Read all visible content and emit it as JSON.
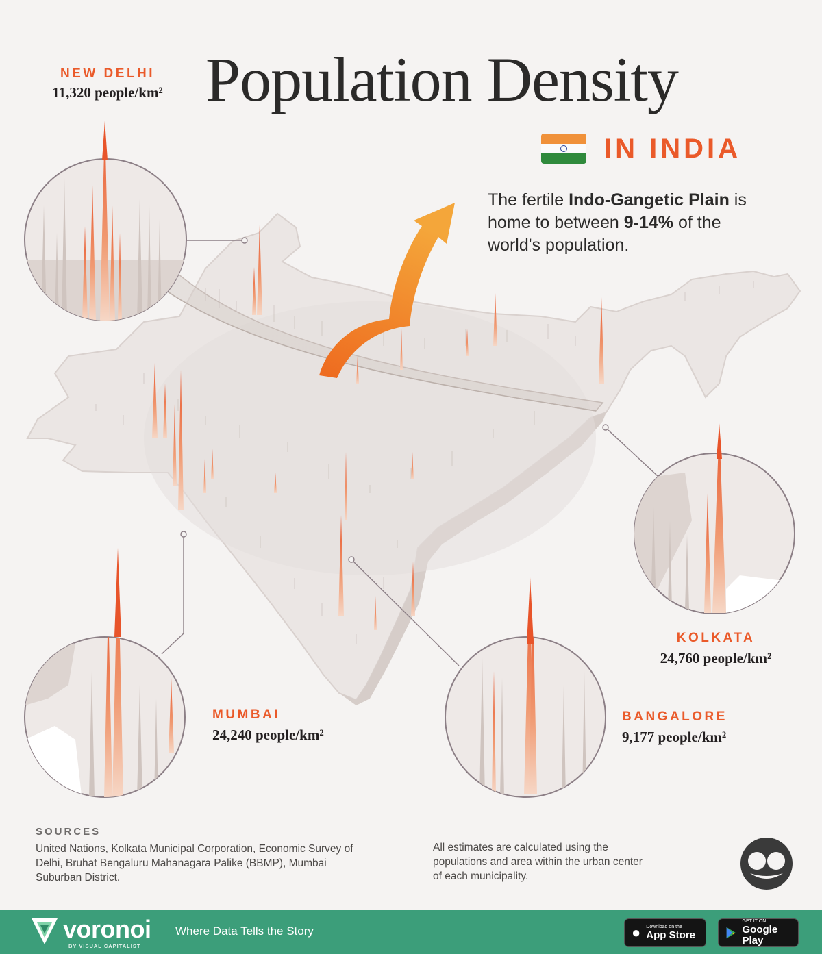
{
  "title": "Population Density",
  "subtitle": "IN INDIA",
  "callout": {
    "part1": "The fertile ",
    "bold1": "Indo-Gangetic Plain",
    "part2": " is home to between ",
    "bold2": "9-14%",
    "part3": " of the world's population."
  },
  "cities": [
    {
      "name": "NEW DELHI",
      "density": "11,320 people/km²"
    },
    {
      "name": "KOLKATA",
      "density": "24,760 people/km²"
    },
    {
      "name": "MUMBAI",
      "density": "24,240 people/km²"
    },
    {
      "name": "BANGALORE",
      "density": "9,177 people/km²"
    }
  ],
  "sources": {
    "title": "SOURCES",
    "text": "United Nations, Kolkata Municipal Corporation, Economic Survey of Delhi, Bruhat Bengaluru Mahanagara Palike (BBMP), Mumbai Suburban District."
  },
  "note": "All estimates are calculated using the populations and area within the urban center of each municipality.",
  "footer": {
    "brand": "voronoi",
    "brand_sub": "BY VISUAL CAPITALIST",
    "tagline": "Where Data Tells the Story",
    "appstore_small": "Download on the",
    "appstore_big": "App Store",
    "gplay_small": "GET IT ON",
    "gplay_big": "Google Play"
  },
  "colors": {
    "accent": "#ea5a2a",
    "footer_bg": "#3c9e7a",
    "map_fill": "#ece8e6",
    "spike": "#e8592a"
  }
}
